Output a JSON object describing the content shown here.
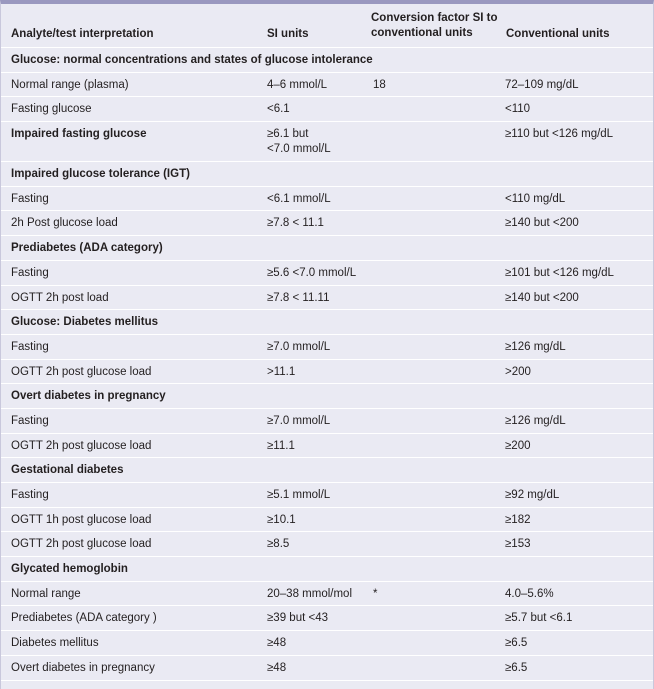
{
  "header": {
    "analyte": "Analyte/test interpretation",
    "si": "SI units",
    "factor": "Conversion factor SI to conventional units",
    "conventional": "Conventional units"
  },
  "rows": [
    {
      "kind": "section",
      "label": "Glucose: normal concentrations and states of glucose intolerance"
    },
    {
      "kind": "data",
      "label": "Normal range (plasma)",
      "si": "4–6 mmol/L",
      "factor": "18",
      "conv": "72–109 mg/dL"
    },
    {
      "kind": "data",
      "label": "Fasting glucose",
      "si": "<6.1",
      "factor": "",
      "conv": "<110"
    },
    {
      "kind": "data-bold",
      "label": "Impaired fasting glucose",
      "si": "≥6.1 but",
      "si2": "<7.0 mmol/L",
      "factor": "",
      "conv": "≥110 but <126 mg/dL"
    },
    {
      "kind": "section",
      "label": "Impaired glucose tolerance (IGT)"
    },
    {
      "kind": "data",
      "label": "Fasting",
      "si": "<6.1 mmol/L",
      "factor": "",
      "conv": "<110 mg/dL"
    },
    {
      "kind": "data",
      "label": "2h Post glucose load",
      "si": "≥7.8 < 11.1",
      "factor": "",
      "conv": "≥140 but <200"
    },
    {
      "kind": "section",
      "label": "Prediabetes (ADA category)"
    },
    {
      "kind": "data",
      "label": "Fasting",
      "si": "≥5.6 <7.0 mmol/L",
      "factor": "",
      "conv": "≥101 but <126 mg/dL"
    },
    {
      "kind": "data",
      "label": "OGTT 2h post load",
      "si": "≥7.8 < 11.11",
      "factor": "",
      "conv": "≥140 but <200"
    },
    {
      "kind": "section",
      "label": "Glucose: Diabetes mellitus"
    },
    {
      "kind": "data",
      "label": "Fasting",
      "si": "≥7.0 mmol/L",
      "factor": "",
      "conv": "≥126 mg/dL"
    },
    {
      "kind": "data",
      "label": "OGTT 2h post glucose load",
      "si": ">11.1",
      "factor": "",
      "conv": ">200"
    },
    {
      "kind": "section",
      "label": "Overt diabetes in pregnancy"
    },
    {
      "kind": "data",
      "label": "Fasting",
      "si": "≥7.0 mmol/L",
      "factor": "",
      "conv": "≥126 mg/dL"
    },
    {
      "kind": "data",
      "label": "OGTT 2h post glucose load",
      "si": "≥11.1",
      "factor": "",
      "conv": "≥200"
    },
    {
      "kind": "section",
      "label": "Gestational diabetes"
    },
    {
      "kind": "data",
      "label": "Fasting",
      "si": "≥5.1 mmol/L",
      "factor": "",
      "conv": "≥92 mg/dL"
    },
    {
      "kind": "data",
      "label": "OGTT 1h post glucose load",
      "si": "≥10.1",
      "factor": "",
      "conv": "≥182"
    },
    {
      "kind": "data",
      "label": "OGTT 2h post glucose load",
      "si": "≥8.5",
      "factor": "",
      "conv": "≥153"
    },
    {
      "kind": "section",
      "label": "Glycated hemoglobin"
    },
    {
      "kind": "data",
      "label": "Normal range",
      "si": "20–38 mmol/mol",
      "factor": "*",
      "conv": "4.0–5.6%"
    },
    {
      "kind": "data",
      "label": "Prediabetes (ADA category )",
      "si": "≥39 but <43",
      "factor": "",
      "conv": "≥5.7 but <6.1"
    },
    {
      "kind": "data",
      "label": "Diabetes mellitus",
      "si": "≥48",
      "factor": "",
      "conv": "≥6.5"
    },
    {
      "kind": "data",
      "label": "Overt diabetes in pregnancy",
      "si": "≥48",
      "factor": "",
      "conv": "≥6.5"
    }
  ]
}
